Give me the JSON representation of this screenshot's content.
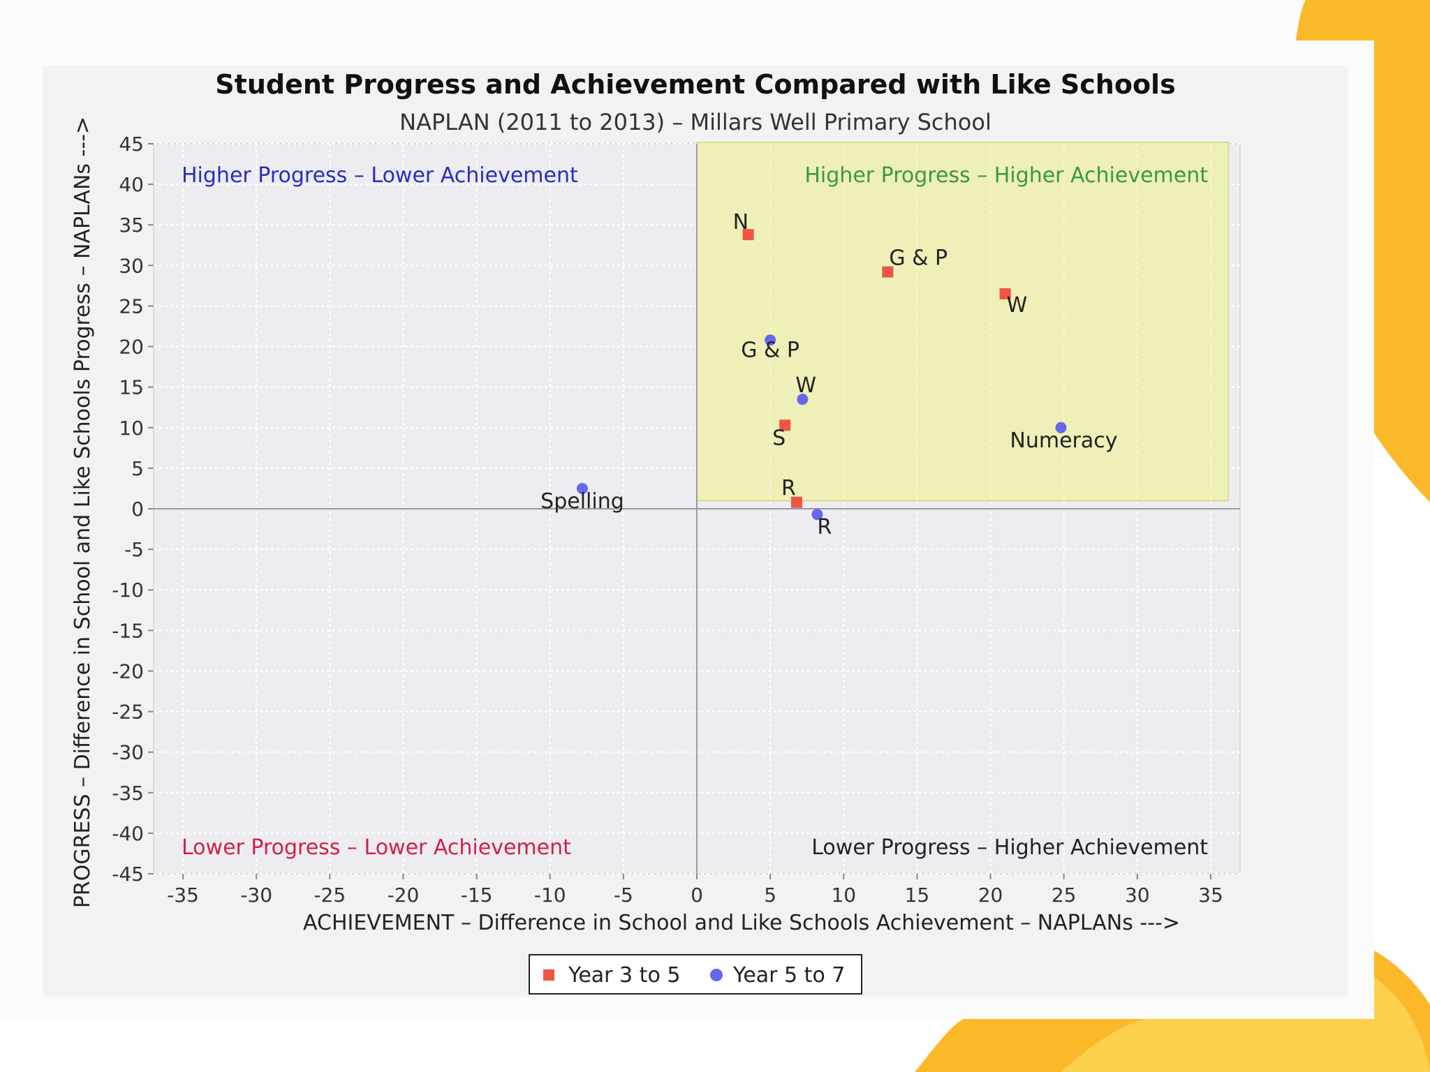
{
  "chart_data": {
    "type": "scatter",
    "title": "Student Progress and Achievement Compared with Like Schools",
    "subtitle": "NAPLAN (2011 to 2013) – Millars Well Primary School",
    "xlabel": "ACHIEVEMENT – Difference in School and Like Schools Achievement – NAPLANs  --->",
    "ylabel": "PROGRESS – Difference in School and Like Schools Progress – NAPLANs  --->",
    "xlim": [
      -37,
      37
    ],
    "ylim": [
      -45,
      45
    ],
    "x_ticks": [
      -35,
      -30,
      -25,
      -20,
      -15,
      -10,
      -5,
      0,
      5,
      10,
      15,
      20,
      25,
      30,
      35
    ],
    "y_ticks": [
      45,
      40,
      35,
      30,
      25,
      20,
      15,
      10,
      5,
      0,
      -5,
      -10,
      -15,
      -20,
      -25,
      -30,
      -35,
      -40,
      -45
    ],
    "grid": true,
    "legend_position": "bottom",
    "highlight_quadrant": "top-right",
    "quadrant_labels": {
      "top_left": "Higher Progress – Lower Achievement",
      "top_right": "Higher Progress – Higher Achievement",
      "bottom_left": "Lower Progress – Lower Achievement",
      "bottom_right": "Lower Progress – Higher Achievement"
    },
    "series": [
      {
        "name": "Year 3 to 5",
        "marker": "square",
        "color": "#ef5545",
        "points": [
          {
            "label": "N",
            "x": 3.5,
            "y": 33.8
          },
          {
            "label": "G & P",
            "x": 13,
            "y": 29.2
          },
          {
            "label": "W",
            "x": 21,
            "y": 26.5
          },
          {
            "label": "S",
            "x": 6,
            "y": 10.3
          },
          {
            "label": "R",
            "x": 6.8,
            "y": 0.8
          }
        ]
      },
      {
        "name": "Year 5 to 7",
        "marker": "circle",
        "color": "#6666ee",
        "points": [
          {
            "label": "G & P",
            "x": 5,
            "y": 20.8
          },
          {
            "label": "W",
            "x": 7.2,
            "y": 13.5
          },
          {
            "label": "Numeracy",
            "x": 24.8,
            "y": 10
          },
          {
            "label": "Spelling",
            "x": -7.8,
            "y": 2.5
          },
          {
            "label": "R",
            "x": 8.2,
            "y": -0.7
          }
        ]
      }
    ],
    "colors": {
      "quadrant_top_left": "#2b2bbd",
      "quadrant_top_right": "#3a9a3a",
      "quadrant_bottom_left": "#d0204a",
      "quadrant_bottom_right": "#222222",
      "highlight_fill": "#eef0b8"
    }
  }
}
